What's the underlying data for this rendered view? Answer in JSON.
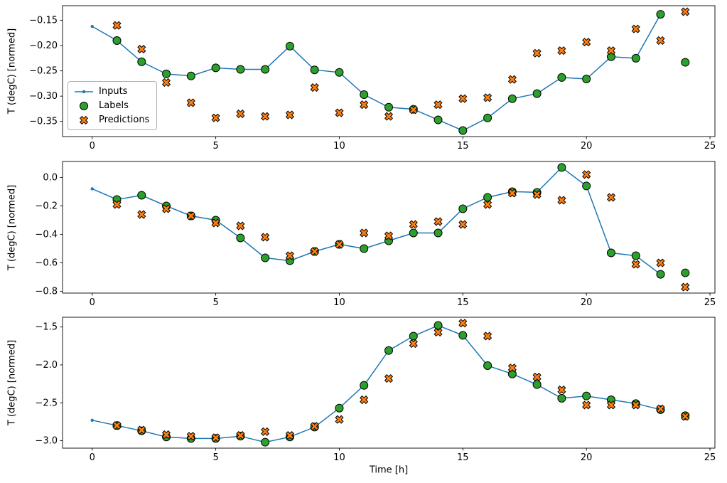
{
  "figure": {
    "xlabel": "Time [h]",
    "background": "#ffffff",
    "colors": {
      "inputs": "#1f77b4",
      "labels": "#2ca02c",
      "predictions": "#ff7f0e",
      "edge": "#000000"
    },
    "legend": {
      "items": [
        {
          "label": "Inputs",
          "marker": "line-dot",
          "color": "#1f77b4"
        },
        {
          "label": "Labels",
          "marker": "circle",
          "color": "#2ca02c"
        },
        {
          "label": "Predictions",
          "marker": "x-cross",
          "color": "#ff7f0e"
        }
      ]
    }
  },
  "chart_data": [
    {
      "type": "line",
      "ylabel": "T (degC) [normed]",
      "xlim": [
        -1.2,
        25.2
      ],
      "ylim": [
        -0.38,
        -0.121
      ],
      "xticks": [
        0,
        5,
        10,
        15,
        20,
        25
      ],
      "xticklabels": [
        "0",
        "5",
        "10",
        "15",
        "20",
        "25"
      ],
      "yticks": [
        -0.15,
        -0.2,
        -0.25,
        -0.3,
        -0.35
      ],
      "yticklabels": [
        "−0.15",
        "−0.20",
        "−0.25",
        "−0.30",
        "−0.35"
      ],
      "series": [
        {
          "name": "Inputs",
          "x": [
            0,
            1,
            2,
            3,
            4,
            5,
            6,
            7,
            8,
            9,
            10,
            11,
            12,
            13,
            14,
            15,
            16,
            17,
            18,
            19,
            20,
            21,
            22,
            23
          ],
          "y": [
            -0.162,
            -0.19,
            -0.232,
            -0.256,
            -0.26,
            -0.244,
            -0.247,
            -0.247,
            -0.201,
            -0.248,
            -0.253,
            -0.297,
            -0.322,
            -0.326,
            -0.347,
            -0.368,
            -0.343,
            -0.305,
            -0.295,
            -0.263,
            -0.266,
            -0.222,
            -0.225,
            -0.138
          ]
        },
        {
          "name": "Labels",
          "x": [
            1,
            2,
            3,
            4,
            5,
            6,
            7,
            8,
            9,
            10,
            11,
            12,
            13,
            14,
            15,
            16,
            17,
            18,
            19,
            20,
            21,
            22,
            23,
            24
          ],
          "y": [
            -0.19,
            -0.232,
            -0.256,
            -0.26,
            -0.244,
            -0.247,
            -0.247,
            -0.201,
            -0.248,
            -0.253,
            -0.297,
            -0.322,
            -0.326,
            -0.347,
            -0.368,
            -0.343,
            -0.305,
            -0.295,
            -0.263,
            -0.266,
            -0.222,
            -0.225,
            -0.138,
            -0.233
          ]
        },
        {
          "name": "Predictions",
          "x": [
            1,
            2,
            3,
            4,
            5,
            6,
            7,
            8,
            9,
            10,
            11,
            12,
            13,
            14,
            15,
            16,
            17,
            18,
            19,
            20,
            21,
            22,
            23,
            24
          ],
          "y": [
            -0.16,
            -0.207,
            -0.273,
            -0.313,
            -0.343,
            -0.335,
            -0.34,
            -0.337,
            -0.283,
            -0.333,
            -0.317,
            -0.34,
            -0.327,
            -0.317,
            -0.305,
            -0.303,
            -0.267,
            -0.215,
            -0.21,
            -0.193,
            -0.21,
            -0.167,
            -0.19,
            -0.133
          ]
        }
      ]
    },
    {
      "type": "line",
      "ylabel": "T (degC) [normed]",
      "xlim": [
        -1.2,
        25.2
      ],
      "ylim": [
        -0.812,
        0.112
      ],
      "xticks": [
        0,
        5,
        10,
        15,
        20,
        25
      ],
      "xticklabels": [
        "0",
        "5",
        "10",
        "15",
        "20",
        "25"
      ],
      "yticks": [
        0.0,
        -0.2,
        -0.4,
        -0.6,
        -0.8
      ],
      "yticklabels": [
        "0.0",
        "−0.2",
        "−0.4",
        "−0.6",
        "−0.8"
      ],
      "series": [
        {
          "name": "Inputs",
          "x": [
            0,
            1,
            2,
            3,
            4,
            5,
            6,
            7,
            8,
            9,
            10,
            11,
            12,
            13,
            14,
            15,
            16,
            17,
            18,
            19,
            20,
            21,
            22,
            23
          ],
          "y": [
            -0.08,
            -0.155,
            -0.125,
            -0.2,
            -0.27,
            -0.3,
            -0.425,
            -0.565,
            -0.585,
            -0.52,
            -0.47,
            -0.5,
            -0.445,
            -0.39,
            -0.39,
            -0.22,
            -0.14,
            -0.1,
            -0.105,
            0.07,
            -0.06,
            -0.53,
            -0.55,
            -0.68
          ]
        },
        {
          "name": "Labels",
          "x": [
            1,
            2,
            3,
            4,
            5,
            6,
            7,
            8,
            9,
            10,
            11,
            12,
            13,
            14,
            15,
            16,
            17,
            18,
            19,
            20,
            21,
            22,
            23,
            24
          ],
          "y": [
            -0.155,
            -0.125,
            -0.2,
            -0.27,
            -0.3,
            -0.425,
            -0.565,
            -0.585,
            -0.52,
            -0.47,
            -0.5,
            -0.445,
            -0.39,
            -0.39,
            -0.22,
            -0.14,
            -0.1,
            -0.105,
            0.07,
            -0.06,
            -0.53,
            -0.55,
            -0.68,
            -0.67
          ]
        },
        {
          "name": "Predictions",
          "x": [
            1,
            2,
            3,
            4,
            5,
            6,
            7,
            8,
            9,
            10,
            11,
            12,
            13,
            14,
            15,
            16,
            17,
            18,
            19,
            20,
            21,
            22,
            23,
            24
          ],
          "y": [
            -0.19,
            -0.26,
            -0.22,
            -0.27,
            -0.32,
            -0.34,
            -0.42,
            -0.55,
            -0.52,
            -0.47,
            -0.39,
            -0.41,
            -0.33,
            -0.31,
            -0.33,
            -0.19,
            -0.11,
            -0.12,
            -0.16,
            0.02,
            -0.14,
            -0.61,
            -0.6,
            -0.77
          ]
        }
      ]
    },
    {
      "type": "line",
      "ylabel": "T (degC) [normed]",
      "xlim": [
        -1.2,
        25.2
      ],
      "ylim": [
        -3.098,
        -1.372
      ],
      "xticks": [
        0,
        5,
        10,
        15,
        20,
        25
      ],
      "xticklabels": [
        "0",
        "5",
        "10",
        "15",
        "20",
        "25"
      ],
      "yticks": [
        -1.5,
        -2.0,
        -2.5,
        -3.0
      ],
      "yticklabels": [
        "−1.5",
        "−2.0",
        "−2.5",
        "−3.0"
      ],
      "series": [
        {
          "name": "Inputs",
          "x": [
            0,
            1,
            2,
            3,
            4,
            5,
            6,
            7,
            8,
            9,
            10,
            11,
            12,
            13,
            14,
            15,
            16,
            17,
            18,
            19,
            20,
            21,
            22,
            23
          ],
          "y": [
            -2.73,
            -2.8,
            -2.87,
            -2.95,
            -2.97,
            -2.97,
            -2.94,
            -3.02,
            -2.95,
            -2.82,
            -2.57,
            -2.27,
            -1.81,
            -1.62,
            -1.48,
            -1.61,
            -2.01,
            -2.12,
            -2.26,
            -2.44,
            -2.41,
            -2.46,
            -2.51,
            -2.59
          ]
        },
        {
          "name": "Labels",
          "x": [
            1,
            2,
            3,
            4,
            5,
            6,
            7,
            8,
            9,
            10,
            11,
            12,
            13,
            14,
            15,
            16,
            17,
            18,
            19,
            20,
            21,
            22,
            23,
            24
          ],
          "y": [
            -2.8,
            -2.87,
            -2.95,
            -2.97,
            -2.97,
            -2.94,
            -3.02,
            -2.95,
            -2.82,
            -2.57,
            -2.27,
            -1.81,
            -1.62,
            -1.48,
            -1.61,
            -2.01,
            -2.12,
            -2.26,
            -2.44,
            -2.41,
            -2.46,
            -2.51,
            -2.59,
            -2.67
          ]
        },
        {
          "name": "Predictions",
          "x": [
            1,
            2,
            3,
            4,
            5,
            6,
            7,
            8,
            9,
            10,
            11,
            12,
            13,
            14,
            15,
            16,
            17,
            18,
            19,
            20,
            21,
            22,
            23,
            24
          ],
          "y": [
            -2.8,
            -2.86,
            -2.92,
            -2.94,
            -2.96,
            -2.93,
            -2.88,
            -2.93,
            -2.81,
            -2.72,
            -2.46,
            -2.18,
            -1.72,
            -1.57,
            -1.45,
            -1.62,
            -2.04,
            -2.16,
            -2.33,
            -2.53,
            -2.53,
            -2.53,
            -2.58,
            -2.68
          ]
        }
      ]
    }
  ]
}
